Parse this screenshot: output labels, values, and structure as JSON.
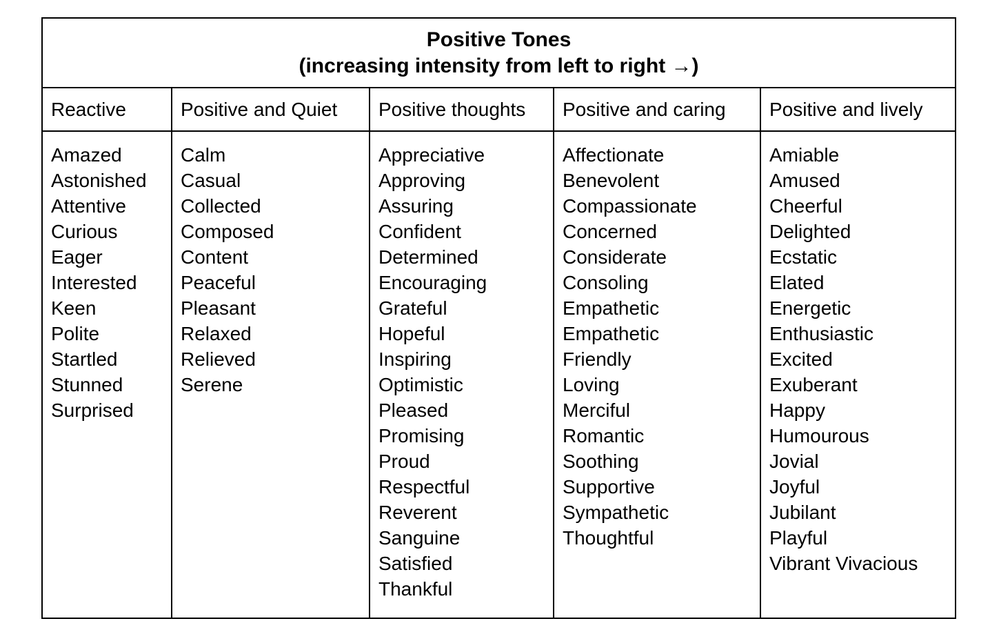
{
  "table": {
    "title": "Positive Tones",
    "subtitle": "(increasing intensity from left to right →)",
    "border_color": "#000000",
    "background_color": "#ffffff",
    "columns": [
      {
        "header": "Reactive",
        "words": [
          "Amazed",
          "Astonished",
          "Attentive",
          "Curious",
          "Eager",
          "Interested",
          "Keen",
          "Polite",
          "Startled",
          "Stunned",
          "Surprised"
        ]
      },
      {
        "header": "Positive and Quiet",
        "words": [
          "Calm",
          "Casual",
          "Collected",
          "Composed",
          "Content",
          "Peaceful",
          "Pleasant",
          "Relaxed",
          "Relieved",
          "Serene"
        ]
      },
      {
        "header": "Positive thoughts",
        "words": [
          "Appreciative",
          "Approving",
          "Assuring",
          "Confident",
          "Determined",
          "Encouraging",
          "Grateful",
          "Hopeful",
          "Inspiring",
          "Optimistic",
          "Pleased",
          "Promising",
          "Proud",
          "Respectful",
          "Reverent",
          "Sanguine",
          "Satisfied",
          "Thankful"
        ]
      },
      {
        "header": "Positive and caring",
        "words": [
          "Affectionate",
          "Benevolent",
          "Compassionate",
          "Concerned",
          "Considerate",
          "Consoling",
          "Empathetic",
          "Empathetic",
          "Friendly",
          "Loving",
          "Merciful",
          "Romantic",
          "Soothing",
          "Supportive",
          "Sympathetic",
          "Thoughtful"
        ]
      },
      {
        "header": "Positive and lively",
        "words": [
          "Amiable",
          "Amused",
          "Cheerful",
          "Delighted",
          "Ecstatic",
          "Elated",
          "Energetic",
          "Enthusiastic",
          "Excited",
          "Exuberant",
          "Happy",
          "Humourous",
          "Jovial",
          "Joyful",
          "Jubilant",
          "Playful",
          "Vibrant Vivacious"
        ]
      }
    ]
  }
}
